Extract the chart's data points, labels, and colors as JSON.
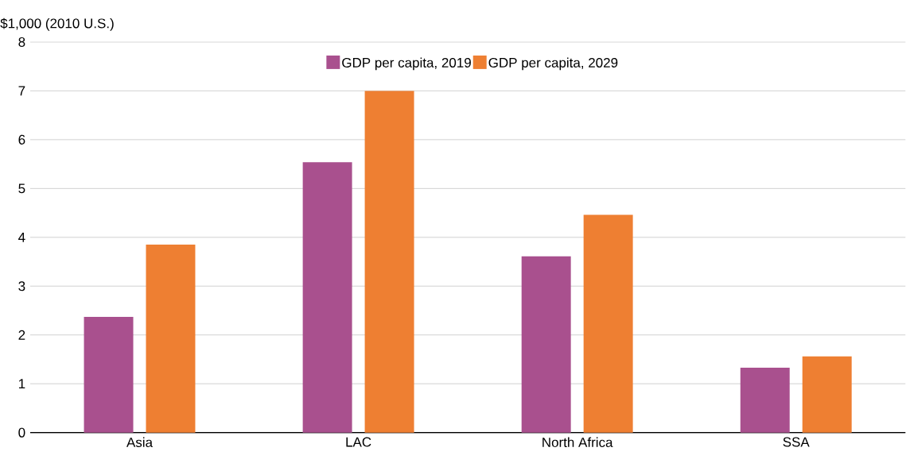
{
  "chart_data": {
    "type": "bar",
    "ylabel": "$1,000 (2010 U.S.)",
    "categories": [
      "Asia",
      "LAC",
      "North Africa",
      "SSA"
    ],
    "series": [
      {
        "name": "GDP per capita, 2019",
        "color": "#a9508e",
        "values": [
          2.37,
          5.54,
          3.61,
          1.33
        ]
      },
      {
        "name": "GDP per capita, 2029",
        "color": "#ee7f32",
        "values": [
          3.85,
          7.0,
          4.46,
          1.56
        ]
      }
    ],
    "ylim": [
      0,
      8
    ],
    "yticks": [
      0,
      1,
      2,
      3,
      4,
      5,
      6,
      7,
      8
    ],
    "grid": "y",
    "legend": "top"
  }
}
